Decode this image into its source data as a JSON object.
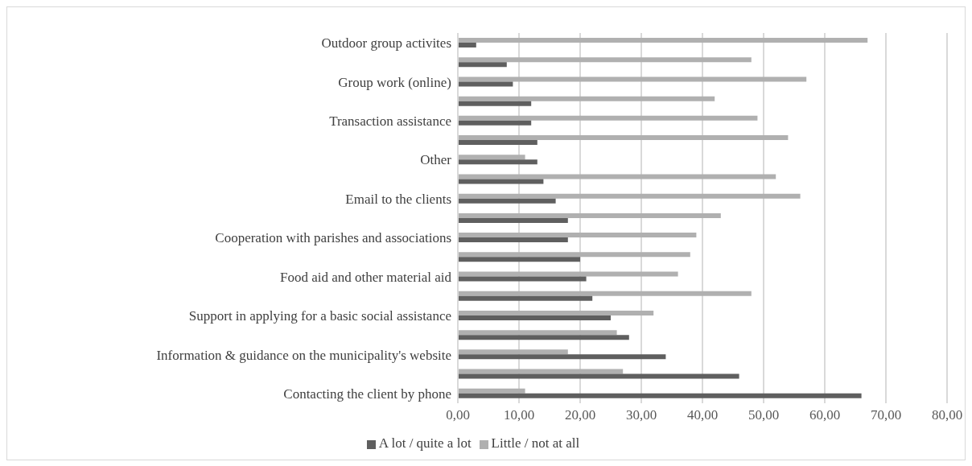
{
  "chart_data": {
    "type": "bar",
    "orientation": "horizontal",
    "categories": [
      "Outdoor group activites",
      null,
      "Group work (online)",
      null,
      "Transaction assistance",
      null,
      "Other",
      null,
      "Email to the clients",
      null,
      "Cooperation with parishes and associations",
      null,
      "Food aid and other material aid",
      null,
      "Support in applying for a basic social assistance",
      null,
      "Information & guidance on the municipality's website",
      null,
      "Contacting the client by phone"
    ],
    "series": [
      {
        "name": "Little / not at all",
        "color": "#b0b0b0",
        "values": [
          67,
          48,
          57,
          42,
          49,
          54,
          11,
          52,
          56,
          43,
          39,
          38,
          36,
          48,
          32,
          26,
          18,
          27,
          11
        ]
      },
      {
        "name": "A lot / quite a lot",
        "color": "#5f5f5f",
        "values": [
          3,
          8,
          9,
          12,
          12,
          13,
          13,
          14,
          16,
          18,
          18,
          20,
          21,
          22,
          25,
          28,
          34,
          46,
          66
        ]
      }
    ],
    "xlim": [
      0,
      80
    ],
    "xticks": [
      {
        "value": 0,
        "label": "0,00"
      },
      {
        "value": 10,
        "label": "10,00"
      },
      {
        "value": 20,
        "label": "20,00"
      },
      {
        "value": 30,
        "label": "30,00"
      },
      {
        "value": 40,
        "label": "40,00"
      },
      {
        "value": 50,
        "label": "50,00"
      },
      {
        "value": 60,
        "label": "60,00"
      },
      {
        "value": 70,
        "label": "70,00"
      },
      {
        "value": 80,
        "label": "80,00"
      }
    ],
    "grid": "x",
    "legend": "bottom"
  }
}
